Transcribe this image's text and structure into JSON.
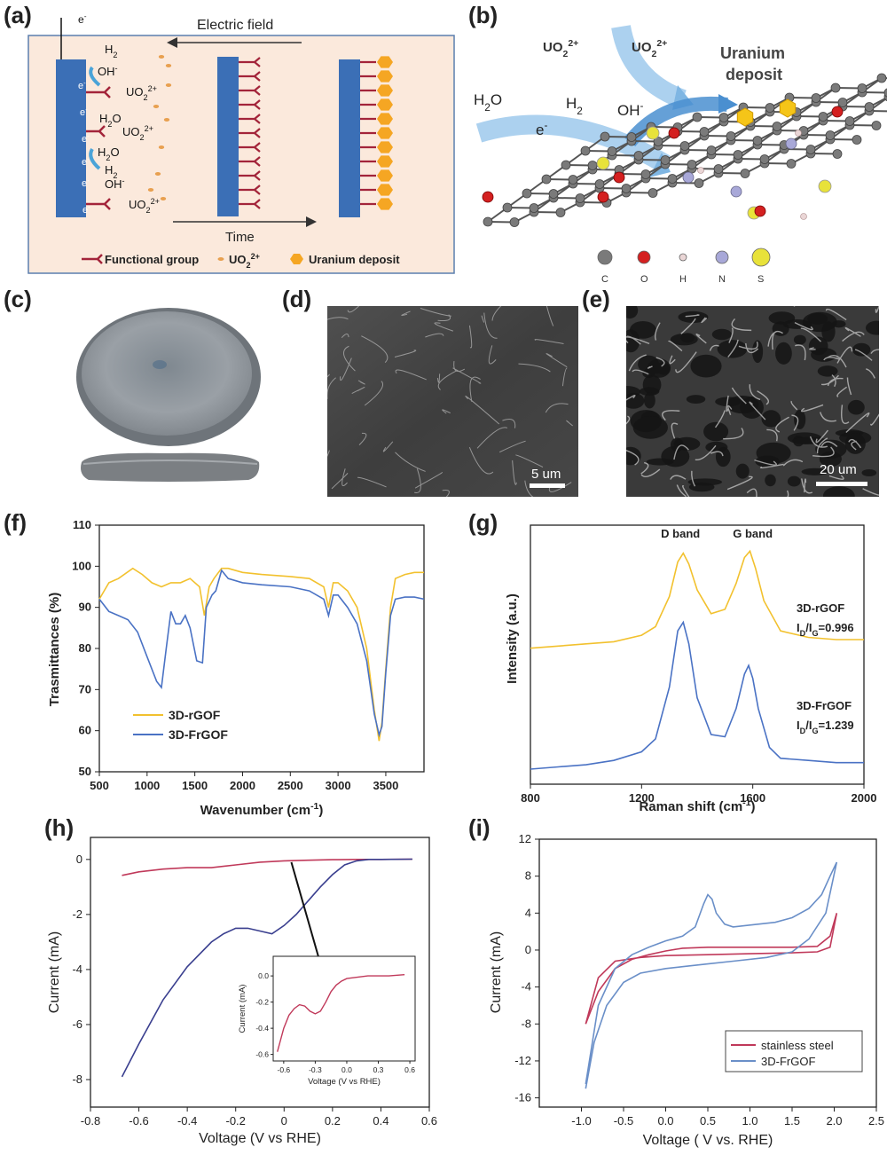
{
  "panels": {
    "a": {
      "letter": "(a)",
      "electric_field": "Electric field",
      "time": "Time",
      "e": "e",
      "h2": "H",
      "oh": "OH",
      "h2o": "H",
      "uo2": "UO",
      "legend": {
        "functional_group": "Functional group",
        "uo2": "UO",
        "uranium_deposit": "Uranium deposit"
      }
    },
    "b": {
      "letter": "(b)",
      "uo2_a": "UO",
      "uo2_b": "UO",
      "uranium_deposit_1": "Uranium",
      "uranium_deposit_2": "deposit",
      "h2o": "H",
      "h2": "H",
      "e": "e",
      "oh": "OH",
      "atoms": [
        "C",
        "O",
        "H",
        "N",
        "S"
      ]
    },
    "c": {
      "letter": "(c)"
    },
    "d": {
      "letter": "(d)",
      "scalebar": "5 um"
    },
    "e": {
      "letter": "(e)",
      "scalebar": "20 um"
    },
    "f": {
      "letter": "(f)"
    },
    "g": {
      "letter": "(g)"
    },
    "h": {
      "letter": "(h)"
    },
    "i": {
      "letter": "(i)"
    }
  },
  "colors": {
    "yellow": "#f2c12e",
    "blue": "#4a72c4",
    "red": "#c0395a",
    "navy": "#3a3f8f",
    "orange": "#f5a623",
    "dark_red": "#a3243a",
    "electrode": "#3b6fb6"
  },
  "chart_data": [
    {
      "panel": "f",
      "type": "line",
      "xlabel": "Wavenumber (cm",
      "xlabel_sup": "-1",
      "xlabel_close": ")",
      "ylabel": "Trasmittances (%)",
      "xlim": [
        500,
        3900
      ],
      "ylim": [
        50,
        110
      ],
      "xticks": [
        500,
        1000,
        1500,
        2000,
        2500,
        3000,
        3500
      ],
      "yticks": [
        50,
        60,
        70,
        80,
        90,
        100,
        110
      ],
      "series": [
        {
          "name": "3D-rGOF",
          "color": "#f2c12e",
          "x": [
            500,
            600,
            700,
            850,
            950,
            1050,
            1150,
            1250,
            1350,
            1450,
            1550,
            1600,
            1650,
            1700,
            1780,
            1850,
            2000,
            2200,
            2500,
            2700,
            2850,
            2900,
            2950,
            3000,
            3100,
            3200,
            3300,
            3380,
            3430,
            3460,
            3500,
            3550,
            3600,
            3700,
            3800,
            3900
          ],
          "y": [
            92,
            96,
            97,
            99.5,
            98,
            96,
            95,
            96,
            96,
            97,
            95,
            88,
            95,
            97,
            99.5,
            99.5,
            98.5,
            98,
            97.5,
            97,
            95,
            90,
            96,
            96,
            94,
            90,
            80,
            65,
            57.5,
            62,
            75,
            90,
            97,
            98,
            98.5,
            98.5
          ]
        },
        {
          "name": "3D-FrGOF",
          "color": "#4a72c4",
          "x": [
            500,
            600,
            700,
            800,
            900,
            1000,
            1100,
            1150,
            1200,
            1250,
            1300,
            1350,
            1400,
            1450,
            1520,
            1580,
            1620,
            1680,
            1720,
            1780,
            1850,
            2000,
            2200,
            2500,
            2700,
            2850,
            2900,
            2950,
            3000,
            3100,
            3200,
            3300,
            3380,
            3430,
            3460,
            3500,
            3550,
            3600,
            3700,
            3800,
            3900
          ],
          "y": [
            92,
            89,
            88,
            87,
            84,
            78,
            72,
            70.5,
            80,
            89,
            86,
            86,
            88,
            85,
            77,
            76.5,
            90,
            93,
            94,
            99,
            97,
            96,
            95.5,
            95,
            94,
            92,
            88,
            93,
            93,
            90,
            86,
            77,
            64,
            59,
            61,
            74,
            88,
            92,
            92.5,
            92.5,
            92
          ]
        }
      ],
      "legend": [
        "3D-rGOF",
        "3D-FrGOF"
      ]
    },
    {
      "panel": "g",
      "type": "line",
      "xlabel": "Raman shift (cm",
      "xlabel_sup": "-1",
      "xlabel_close": ")",
      "ylabel": "Intensity (a.u.)",
      "xlim": [
        800,
        2000
      ],
      "xticks": [
        800,
        1200,
        1600,
        2000
      ],
      "band_labels": [
        "D band",
        "G band"
      ],
      "annotations": [
        {
          "name": "3D-rGOF",
          "ratio_prefix": "I",
          "ratio_d": "D",
          "ratio_sep": "/I",
          "ratio_g": "G",
          "ratio_value": "=0.996"
        },
        {
          "name": "3D-FrGOF",
          "ratio_prefix": "I",
          "ratio_d": "D",
          "ratio_sep": "/I",
          "ratio_g": "G",
          "ratio_value": "=1.239"
        }
      ],
      "series": [
        {
          "name": "3D-rGOF",
          "color": "#f2c12e",
          "x": [
            800,
            900,
            1000,
            1100,
            1200,
            1250,
            1300,
            1330,
            1350,
            1370,
            1400,
            1450,
            1500,
            1540,
            1570,
            1590,
            1610,
            1640,
            1700,
            1800,
            1900,
            2000
          ],
          "y": [
            0.58,
            0.59,
            0.6,
            0.61,
            0.64,
            0.68,
            0.82,
            0.98,
            1.02,
            0.97,
            0.85,
            0.74,
            0.76,
            0.88,
            1.0,
            1.03,
            0.95,
            0.8,
            0.66,
            0.63,
            0.62,
            0.62
          ]
        },
        {
          "name": "3D-FrGOF",
          "color": "#4a72c4",
          "x": [
            800,
            900,
            1000,
            1100,
            1200,
            1250,
            1300,
            1330,
            1350,
            1370,
            1400,
            1450,
            1500,
            1540,
            1570,
            1585,
            1600,
            1620,
            1660,
            1700,
            1800,
            1900,
            2000
          ],
          "y": [
            0.02,
            0.03,
            0.04,
            0.06,
            0.1,
            0.16,
            0.4,
            0.66,
            0.7,
            0.6,
            0.35,
            0.18,
            0.17,
            0.3,
            0.46,
            0.5,
            0.44,
            0.3,
            0.12,
            0.07,
            0.06,
            0.05,
            0.05
          ]
        }
      ]
    },
    {
      "panel": "h",
      "type": "line",
      "xlabel": "Voltage (V vs RHE)",
      "ylabel": "Current (mA)",
      "xlim": [
        -0.8,
        0.6
      ],
      "ylim": [
        -9,
        0.8
      ],
      "xticks": [
        -0.8,
        -0.6,
        -0.4,
        -0.2,
        0.0,
        0.2,
        0.4,
        0.6
      ],
      "yticks": [
        -8,
        -6,
        -4,
        -2,
        0
      ],
      "series": [
        {
          "name": "red",
          "color": "#c0395a",
          "x": [
            -0.67,
            -0.6,
            -0.5,
            -0.4,
            -0.3,
            -0.2,
            -0.1,
            0.0,
            0.1,
            0.2,
            0.3,
            0.4,
            0.53
          ],
          "y": [
            -0.58,
            -0.45,
            -0.35,
            -0.3,
            -0.3,
            -0.2,
            -0.1,
            -0.05,
            -0.03,
            -0.01,
            0,
            0,
            0.01
          ]
        },
        {
          "name": "blue",
          "color": "#3a3f8f",
          "x": [
            -0.67,
            -0.6,
            -0.5,
            -0.4,
            -0.3,
            -0.25,
            -0.2,
            -0.15,
            -0.1,
            -0.05,
            0.0,
            0.05,
            0.1,
            0.15,
            0.2,
            0.25,
            0.3,
            0.35,
            0.4,
            0.53
          ],
          "y": [
            -7.9,
            -6.7,
            -5.1,
            -3.9,
            -3.0,
            -2.7,
            -2.5,
            -2.5,
            -2.6,
            -2.7,
            -2.4,
            -2.0,
            -1.5,
            -1.0,
            -0.55,
            -0.2,
            -0.05,
            0,
            0,
            0.01
          ]
        }
      ],
      "inset": {
        "xlabel": "Voltage (V vs RHE)",
        "ylabel": "Current (mA)",
        "xlim": [
          -0.7,
          0.65
        ],
        "ylim": [
          -0.65,
          0.15
        ],
        "xticks": [
          -0.6,
          -0.3,
          0.0,
          0.3,
          0.6
        ],
        "xtick_labels": [
          "-0.6",
          "-0.3",
          "0.0",
          "0.3",
          "0.6"
        ],
        "yticks": [
          -0.6,
          -0.4,
          -0.2,
          0.0
        ],
        "ytick_labels": [
          "-0.6",
          "-0.4",
          "-0.2",
          "0.0"
        ],
        "x": [
          -0.66,
          -0.6,
          -0.55,
          -0.5,
          -0.45,
          -0.4,
          -0.35,
          -0.3,
          -0.25,
          -0.2,
          -0.15,
          -0.1,
          -0.05,
          0.0,
          0.1,
          0.2,
          0.3,
          0.4,
          0.55
        ],
        "y": [
          -0.58,
          -0.4,
          -0.3,
          -0.25,
          -0.22,
          -0.23,
          -0.27,
          -0.29,
          -0.27,
          -0.2,
          -0.12,
          -0.07,
          -0.04,
          -0.02,
          -0.01,
          0,
          0,
          0,
          0.01
        ]
      }
    },
    {
      "panel": "i",
      "type": "line",
      "xlabel": "Voltage ( V vs. RHE)",
      "ylabel": "Current (mA)",
      "xlim": [
        -1.5,
        2.5
      ],
      "ylim": [
        -17,
        12
      ],
      "xticks": [
        -1.0,
        -0.5,
        0.0,
        0.5,
        1.0,
        1.5,
        2.0,
        2.5
      ],
      "xtick_labels": [
        "-1.0",
        "-0.5",
        "0.0",
        "0.5",
        "1.0",
        "1.5",
        "2.0",
        "2.5"
      ],
      "yticks": [
        -16,
        -12,
        -8,
        -4,
        0,
        4,
        8,
        12
      ],
      "series": [
        {
          "name": "stainless steel",
          "color": "#c0395a",
          "x": [
            -0.95,
            -0.8,
            -0.6,
            -0.4,
            -0.2,
            0.0,
            0.2,
            0.5,
            1.0,
            1.5,
            1.8,
            1.95,
            2.03,
            1.95,
            1.8,
            1.5,
            1.0,
            0.5,
            0.0,
            -0.3,
            -0.6,
            -0.8,
            -0.95
          ],
          "y": [
            -8,
            -4.5,
            -2,
            -1,
            -0.5,
            -0.1,
            0.2,
            0.3,
            0.3,
            0.3,
            0.4,
            1.5,
            4,
            0.3,
            -0.2,
            -0.3,
            -0.4,
            -0.5,
            -0.6,
            -0.8,
            -1.2,
            -3,
            -8
          ]
        },
        {
          "name": "3D-FrGOF",
          "color": "#6a8fc8",
          "x": [
            -0.95,
            -0.8,
            -0.6,
            -0.4,
            -0.2,
            0.0,
            0.2,
            0.35,
            0.45,
            0.5,
            0.55,
            0.6,
            0.7,
            0.8,
            1.0,
            1.3,
            1.5,
            1.7,
            1.85,
            1.95,
            2.03,
            1.9,
            1.7,
            1.5,
            1.2,
            0.8,
            0.5,
            0.2,
            0.0,
            -0.3,
            -0.5,
            -0.7,
            -0.85,
            -0.95
          ],
          "y": [
            -14.5,
            -6,
            -2,
            -0.5,
            0.3,
            1,
            1.5,
            2.5,
            5,
            6,
            5.5,
            4,
            2.8,
            2.5,
            2.7,
            3,
            3.5,
            4.5,
            6,
            8,
            9.5,
            4,
            1.2,
            -0.2,
            -0.8,
            -1.2,
            -1.5,
            -1.8,
            -2,
            -2.5,
            -3.5,
            -6,
            -10,
            -15
          ]
        }
      ],
      "legend": [
        "stainless steel",
        "3D-FrGOF"
      ]
    }
  ]
}
